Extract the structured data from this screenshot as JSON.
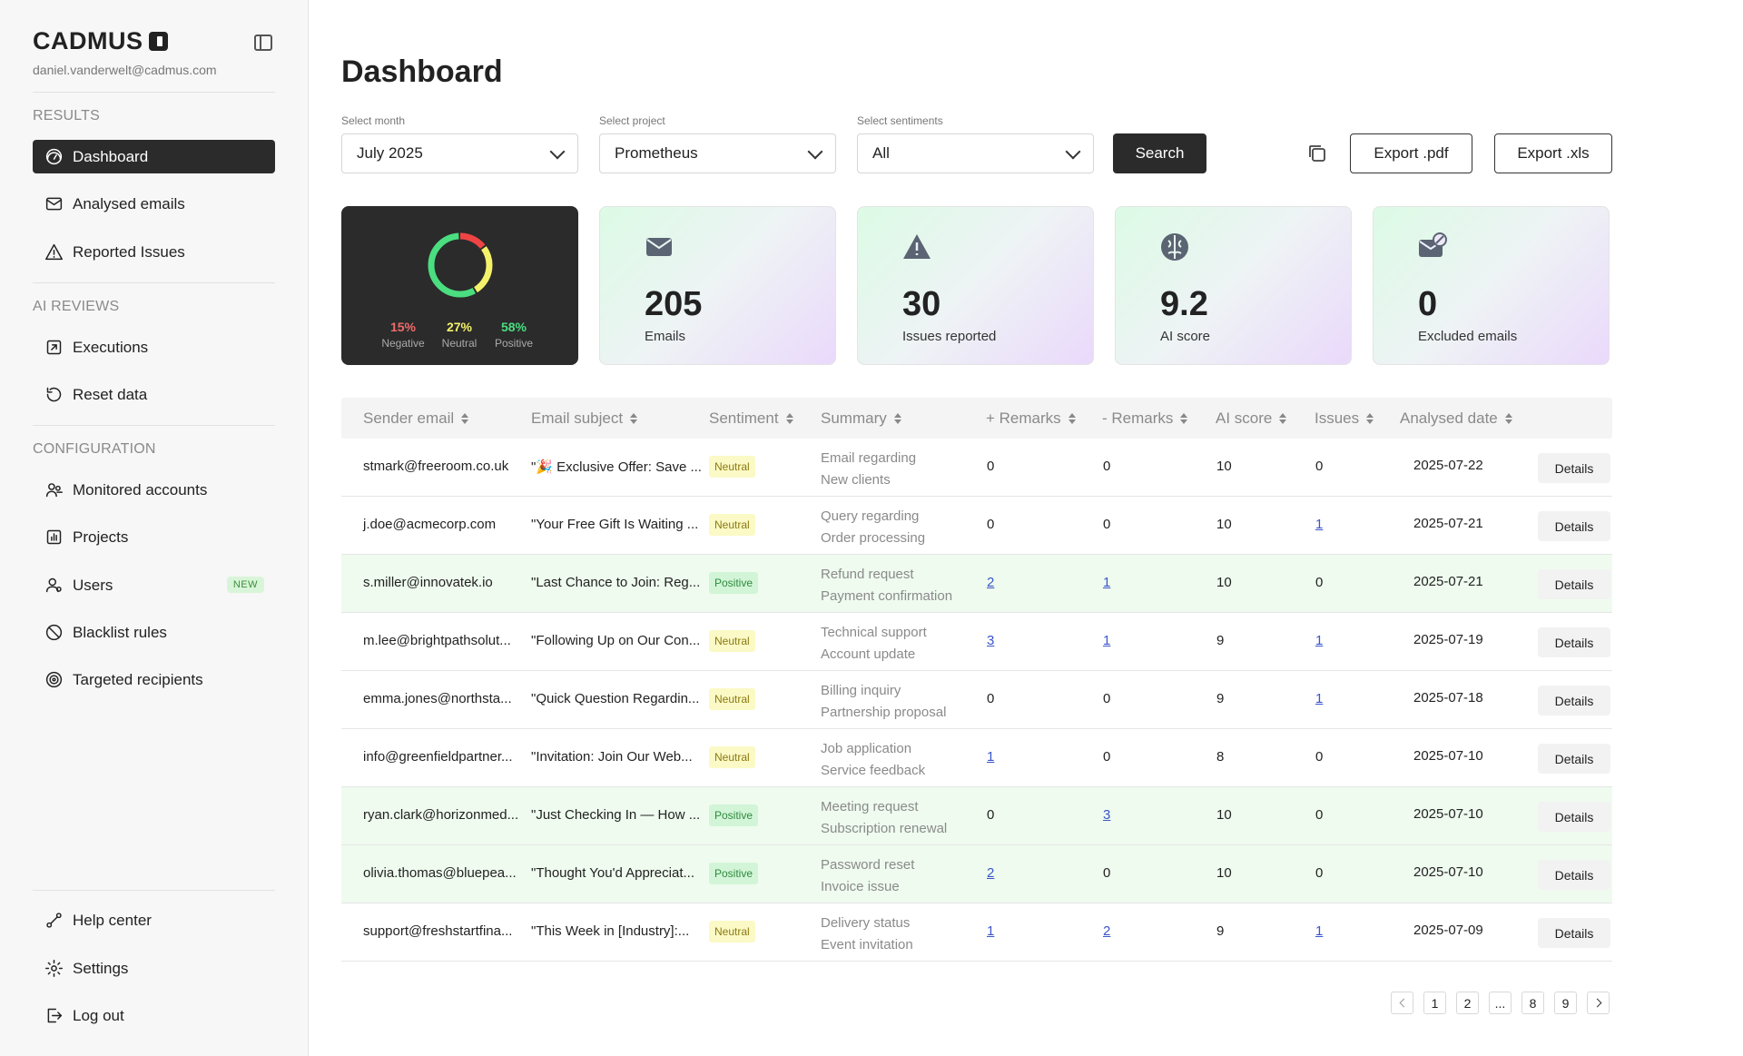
{
  "sidebar": {
    "brand": "CADMUS",
    "user_email": "daniel.vanderwelt@cadmus.com",
    "sections": {
      "results": "RESULTS",
      "ai_reviews": "AI REVIEWS",
      "configuration": "CONFIGURATION"
    },
    "items": [
      {
        "label": "Dashboard",
        "icon": "dashboard-icon"
      },
      {
        "label": "Analysed emails",
        "icon": "mail-icon"
      },
      {
        "label": "Reported Issues",
        "icon": "warning-icon"
      },
      {
        "label": "Executions",
        "icon": "executions-icon"
      },
      {
        "label": "Reset data",
        "icon": "reset-icon"
      },
      {
        "label": "Monitored accounts",
        "icon": "accounts-icon"
      },
      {
        "label": "Projects",
        "icon": "projects-icon"
      },
      {
        "label": "Users",
        "icon": "users-icon",
        "badge": "NEW"
      },
      {
        "label": "Blacklist rules",
        "icon": "blacklist-icon"
      },
      {
        "label": "Targeted recipients",
        "icon": "target-icon"
      },
      {
        "label": "Help center",
        "icon": "help-icon"
      },
      {
        "label": "Settings",
        "icon": "settings-icon"
      },
      {
        "label": "Log out",
        "icon": "logout-icon"
      }
    ]
  },
  "main": {
    "title": "Dashboard",
    "filters": {
      "month": {
        "label": "Select month",
        "value": "July 2025"
      },
      "project": {
        "label": "Select project",
        "value": "Prometheus"
      },
      "sentiment": {
        "label": "Select sentiments",
        "value": "All"
      }
    },
    "search_label": "Search",
    "export_pdf": "Export .pdf",
    "export_xls": "Export .xls"
  },
  "sentiment_card": {
    "negative": {
      "pct": "15%",
      "label": "Negative",
      "value": 15,
      "color": "#ef4444"
    },
    "neutral": {
      "pct": "27%",
      "label": "Neutral",
      "value": 27,
      "color": "#f4f26a"
    },
    "positive": {
      "pct": "58%",
      "label": "Positive",
      "value": 58,
      "color": "#4ade80"
    }
  },
  "stats": [
    {
      "value": "205",
      "caption": "Emails",
      "icon": "envelope-icon"
    },
    {
      "value": "30",
      "caption": "Issues reported",
      "icon": "alert-icon"
    },
    {
      "value": "9.2",
      "caption": "AI score",
      "icon": "brain-icon"
    },
    {
      "value": "0",
      "caption": "Excluded emails",
      "icon": "excluded-mail-icon"
    }
  ],
  "table": {
    "headers": [
      "Sender email",
      "Email subject",
      "Sentiment",
      "Summary",
      "+ Remarks",
      "- Remarks",
      "AI score",
      "Issues",
      "Analysed date"
    ],
    "details_label": "Details",
    "rows": [
      {
        "sender": "stmark@freeroom.co.uk",
        "subject": "\"🎉 Exclusive Offer: Save ...",
        "sentiment": "Neutral",
        "s1": "Email regarding",
        "s2": "New clients",
        "plus": "0",
        "minus": "0",
        "score": "10",
        "issues": "0",
        "date": "2025-07-22"
      },
      {
        "sender": "j.doe@acmecorp.com",
        "subject": "\"Your Free Gift Is Waiting ...",
        "sentiment": "Neutral",
        "s1": "Query regarding",
        "s2": "Order processing",
        "plus": "0",
        "minus": "0",
        "score": "10",
        "issues": "1",
        "date": "2025-07-21"
      },
      {
        "sender": "s.miller@innovatek.io",
        "subject": "\"Last Chance to Join: Reg...",
        "sentiment": "Positive",
        "s1": "Refund request",
        "s2": "Payment confirmation",
        "plus": "2",
        "minus": "1",
        "score": "10",
        "issues": "0",
        "date": "2025-07-21"
      },
      {
        "sender": "m.lee@brightpathsolut...",
        "subject": "\"Following Up on Our Con...",
        "sentiment": "Neutral",
        "s1": "Technical support",
        "s2": "Account update",
        "plus": "3",
        "minus": "1",
        "score": "9",
        "issues": "1",
        "date": "2025-07-19"
      },
      {
        "sender": "emma.jones@northsta...",
        "subject": "\"Quick Question Regardin...",
        "sentiment": "Neutral",
        "s1": "Billing inquiry",
        "s2": "Partnership proposal",
        "plus": "0",
        "minus": "0",
        "score": "9",
        "issues": "1",
        "date": "2025-07-18"
      },
      {
        "sender": "info@greenfieldpartner...",
        "subject": "\"Invitation: Join Our Web...",
        "sentiment": "Neutral",
        "s1": "Job application",
        "s2": "Service feedback",
        "plus": "1",
        "minus": "0",
        "score": "8",
        "issues": "0",
        "date": "2025-07-10"
      },
      {
        "sender": "ryan.clark@horizonmed...",
        "subject": "\"Just Checking In — How ...",
        "sentiment": "Positive",
        "s1": "Meeting request",
        "s2": "Subscription renewal",
        "plus": "0",
        "minus": "3",
        "score": "10",
        "issues": "0",
        "date": "2025-07-10"
      },
      {
        "sender": "olivia.thomas@bluepea...",
        "subject": "\"Thought You'd Appreciat...",
        "sentiment": "Positive",
        "s1": "Password reset",
        "s2": "Invoice issue",
        "plus": "2",
        "minus": "0",
        "score": "10",
        "issues": "0",
        "date": "2025-07-10"
      },
      {
        "sender": "support@freshstartfina...",
        "subject": "\"This Week in [Industry]:...",
        "sentiment": "Neutral",
        "s1": "Delivery status",
        "s2": "Event invitation",
        "plus": "1",
        "minus": "2",
        "score": "9",
        "issues": "1",
        "date": "2025-07-09"
      }
    ]
  },
  "pagination": {
    "pages": [
      "1",
      "2",
      "...",
      "8",
      "9"
    ]
  }
}
